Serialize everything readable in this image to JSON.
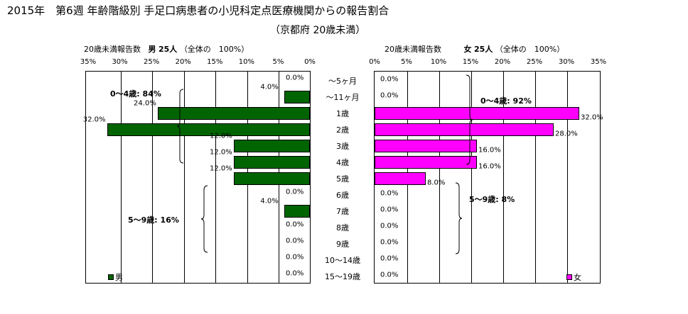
{
  "title": "2015年　第6週 年齢階級別 手足口病患者の小児科定点医療機関からの報告割合",
  "subtitle": "（京都府 20歳未満）",
  "left_panel": {
    "header_prefix": "20歳未満報告数",
    "header_sex": "男",
    "header_count": "25人",
    "header_suffix": "（全体の　100%）",
    "legend": "男",
    "annotations": [
      "0～4歳: 84%",
      "5～9歳: 16%"
    ]
  },
  "right_panel": {
    "header_prefix": "20歳未満報告数",
    "header_sex": "女",
    "header_count": "25人",
    "header_suffix": "（全体の　100%）",
    "legend": "女",
    "annotations": [
      "0～4歳: 92%",
      "5～9歳: 8%"
    ]
  },
  "chart_data": [
    {
      "type": "bar",
      "orientation": "horizontal-reversed",
      "title": "男",
      "categories": [
        "～5ヶ月",
        "～11ヶ月",
        "1歳",
        "2歳",
        "3歳",
        "4歳",
        "5歳",
        "6歳",
        "7歳",
        "8歳",
        "9歳",
        "10～14歳",
        "15～19歳"
      ],
      "values": [
        0.0,
        4.0,
        24.0,
        32.0,
        12.0,
        12.0,
        12.0,
        0.0,
        4.0,
        0.0,
        0.0,
        0.0,
        0.0
      ],
      "labels": [
        "0.0%",
        "4.0%",
        "24.0%",
        "32.0%",
        "12.0%",
        "12.0%",
        "12.0%",
        "0.0%",
        "4.0%",
        "0.0%",
        "0.0%",
        "0.0%",
        "0.0%"
      ],
      "xlim": [
        0,
        35
      ],
      "xticks": [
        "0%",
        "5%",
        "10%",
        "15%",
        "20%",
        "25%",
        "30%",
        "35%"
      ],
      "color": "#006400"
    },
    {
      "type": "bar",
      "orientation": "horizontal",
      "title": "女",
      "categories": [
        "～5ヶ月",
        "～11ヶ月",
        "1歳",
        "2歳",
        "3歳",
        "4歳",
        "5歳",
        "6歳",
        "7歳",
        "8歳",
        "9歳",
        "10～14歳",
        "15～19歳"
      ],
      "values": [
        0.0,
        0.0,
        32.0,
        28.0,
        16.0,
        16.0,
        8.0,
        0.0,
        0.0,
        0.0,
        0.0,
        0.0,
        0.0
      ],
      "labels": [
        "0.0%",
        "0.0%",
        "32.0%",
        "28.0%",
        "16.0%",
        "16.0%",
        "8.0%",
        "0.0%",
        "0.0%",
        "0.0%",
        "0.0%",
        "0.0%",
        "0.0%"
      ],
      "xlim": [
        0,
        35
      ],
      "xticks": [
        "0%",
        "5%",
        "10%",
        "15%",
        "20%",
        "25%",
        "30%",
        "35%"
      ],
      "color": "#FF00FF"
    }
  ]
}
